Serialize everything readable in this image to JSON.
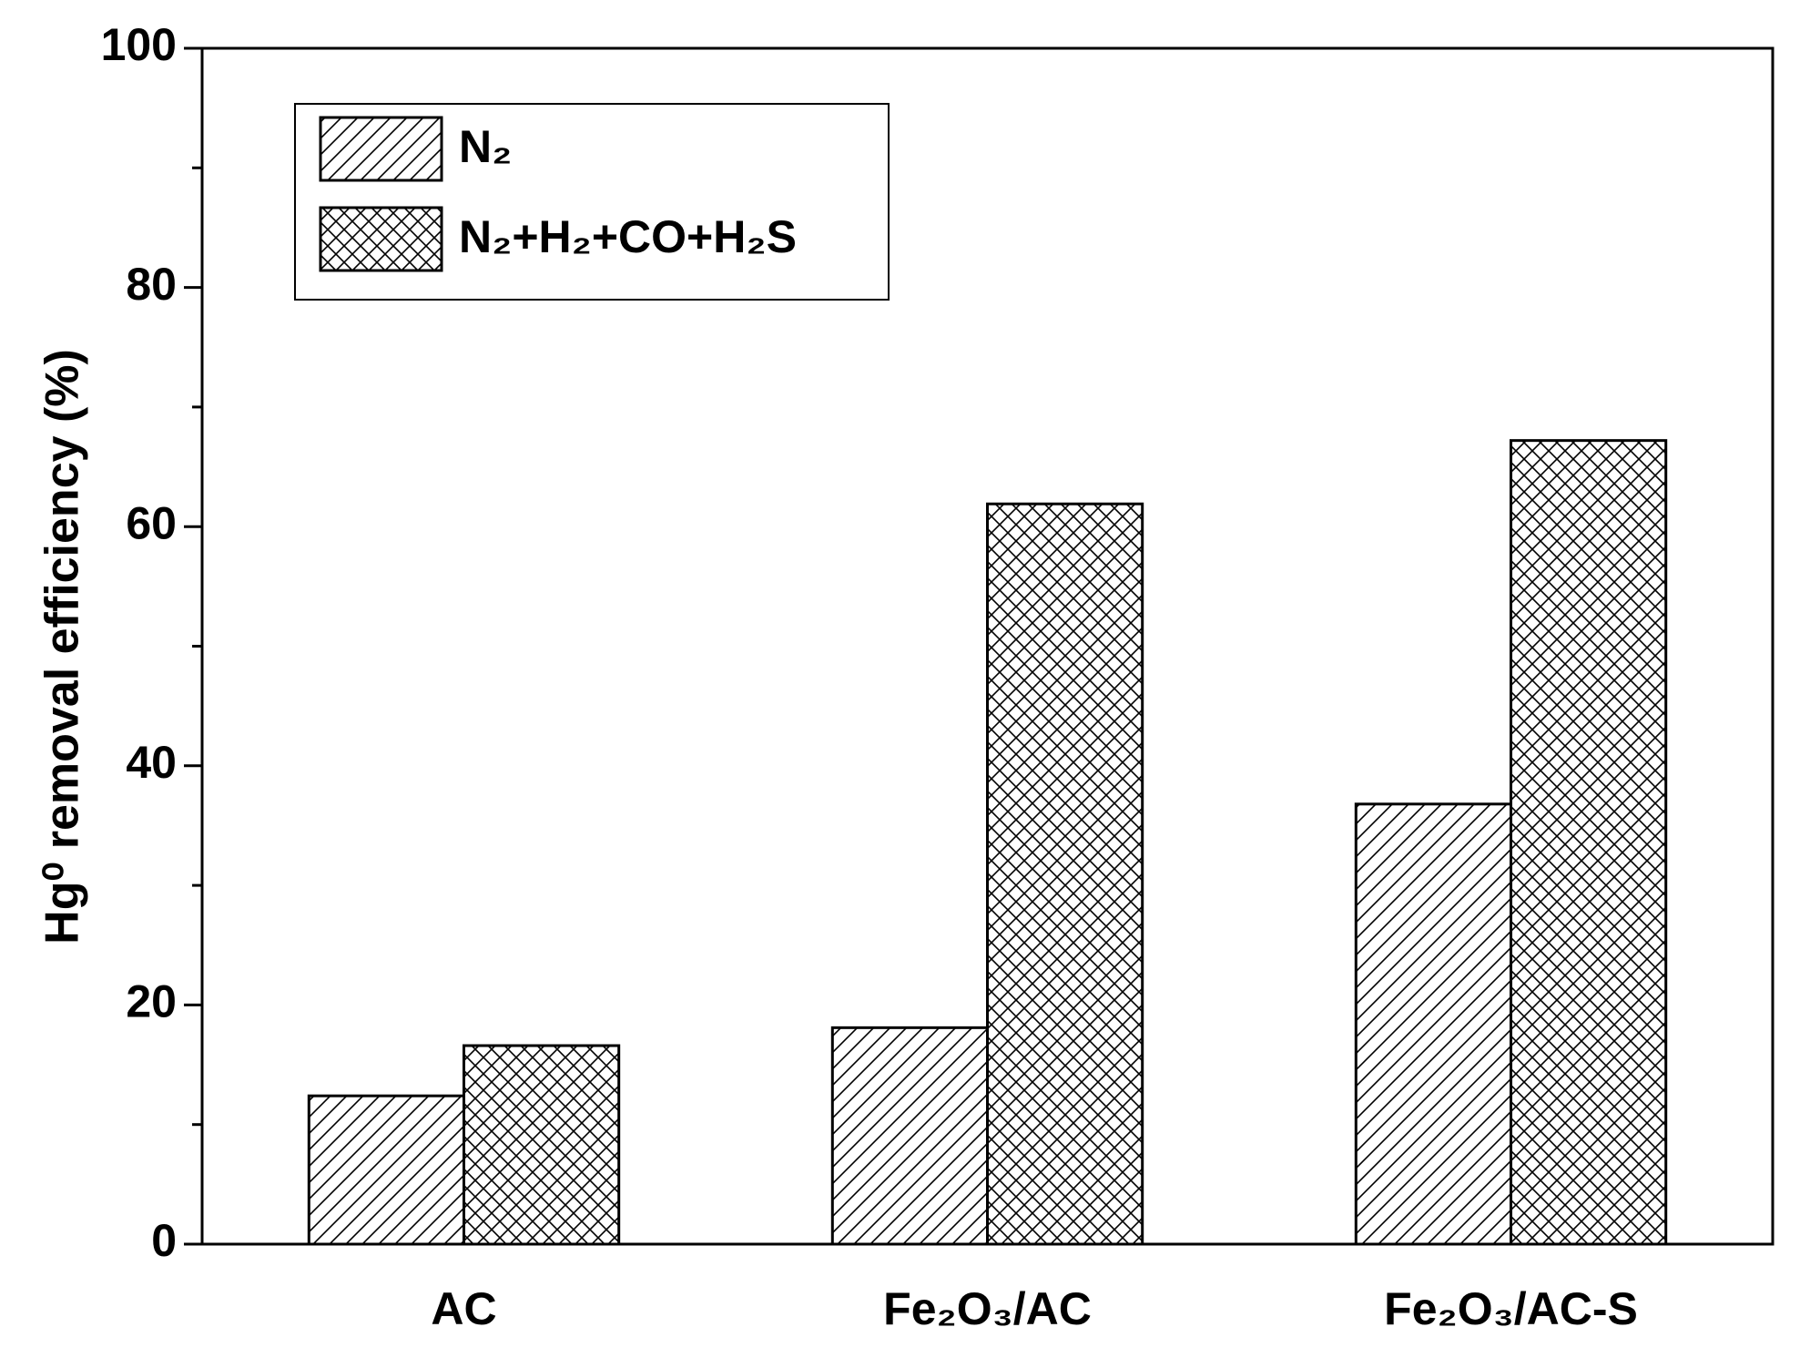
{
  "chart_data": {
    "type": "bar",
    "ylabel": "Hg⁰ removal efficiency (%)",
    "categories": [
      "AC",
      "Fe₂O₃/AC",
      "Fe₂O₃/AC-S"
    ],
    "series": [
      {
        "name": "N₂",
        "color": "#000000",
        "hatch": "/",
        "values": [
          12.4,
          18.1,
          36.8
        ]
      },
      {
        "name": "N₂+H₂+CO+H₂S",
        "color": "#000000",
        "hatch": "x",
        "values": [
          16.6,
          61.9,
          67.2
        ]
      }
    ],
    "ylim": [
      0,
      100
    ],
    "yticks": [
      0,
      20,
      40,
      60,
      80,
      100
    ],
    "yminorticks": [
      10,
      30,
      50,
      70,
      90
    ],
    "legend": "upper left",
    "grid": false
  }
}
